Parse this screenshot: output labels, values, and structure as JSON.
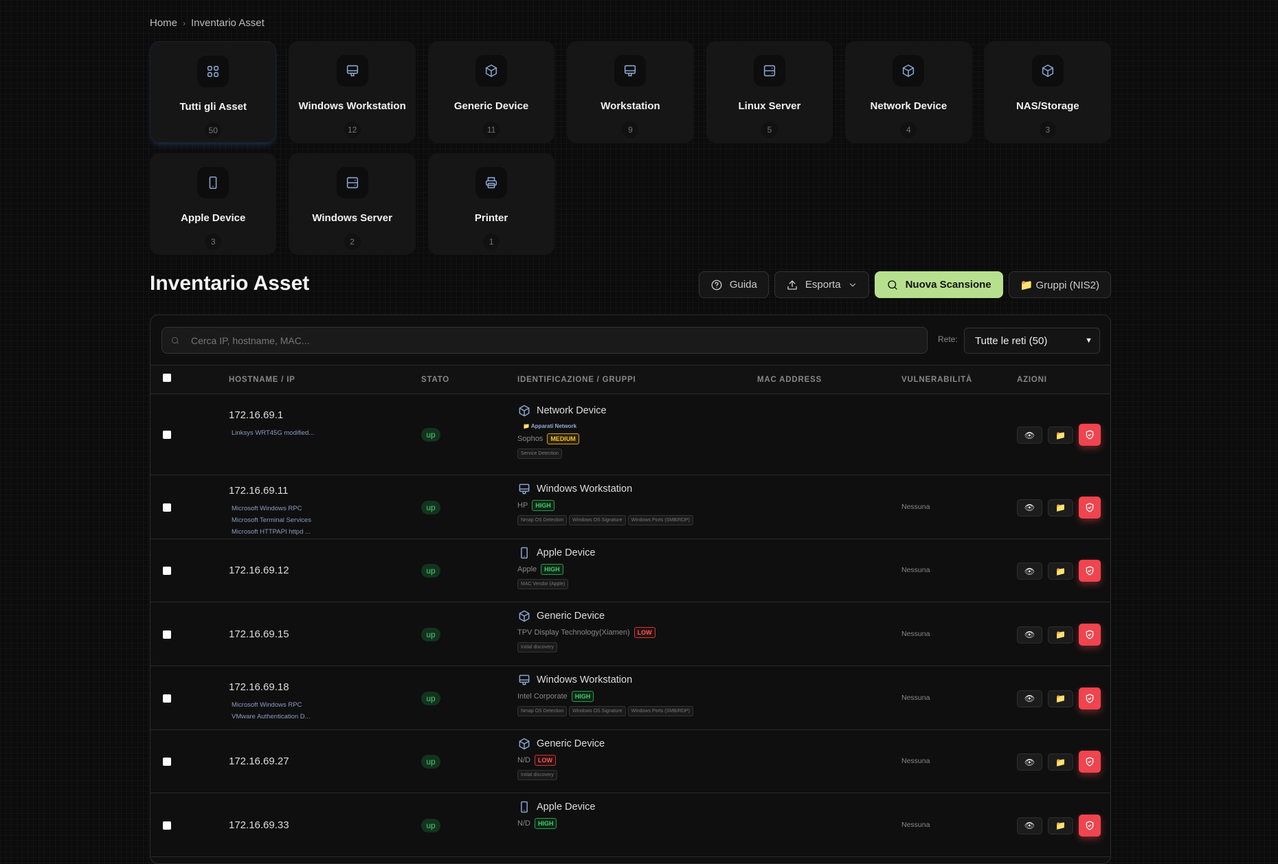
{
  "breadcrumb": {
    "home": "Home",
    "separator": "›",
    "current": "Inventario Asset"
  },
  "categories": [
    {
      "name": "Tutti gli Asset",
      "count": "50",
      "icon": "grid-icon",
      "active": true
    },
    {
      "name": "Windows Workstation",
      "count": "12",
      "icon": "monitor-icon"
    },
    {
      "name": "Generic Device",
      "count": "11",
      "icon": "box-icon"
    },
    {
      "name": "Workstation",
      "count": "9",
      "icon": "monitor-icon"
    },
    {
      "name": "Linux Server",
      "count": "5",
      "icon": "server-icon"
    },
    {
      "name": "Network Device",
      "count": "4",
      "icon": "box-icon"
    },
    {
      "name": "NAS/Storage",
      "count": "3",
      "icon": "box-icon"
    },
    {
      "name": "Apple Device",
      "count": "3",
      "icon": "phone-icon"
    },
    {
      "name": "Windows Server",
      "count": "2",
      "icon": "server-icon"
    },
    {
      "name": "Printer",
      "count": "1",
      "icon": "printer-icon"
    }
  ],
  "page_title": "Inventario Asset",
  "toolbar": {
    "guide": "Guida",
    "export": "Esporta",
    "scan": "Nuova Scansione",
    "groups": "📁 Gruppi (NIS2)",
    "accent": "#b7e08e"
  },
  "filters": {
    "search_placeholder": "Cerca IP, hostname, MAC...",
    "search_value": "",
    "network_label": "Rete:",
    "network_value": "Tutte le reti (50)"
  },
  "table": {
    "columns": [
      "HOSTNAME / IP",
      "STATO",
      "IDENTIFICAZIONE / GRUPPI",
      "MAC ADDRESS",
      "VULNERABILITÀ",
      "AZIONI"
    ],
    "rows": [
      {
        "ip": "172.16.69.1",
        "services": [
          "Linksys WRT45G modified..."
        ],
        "status": "up",
        "type": "Network Device",
        "icon": "box-icon",
        "group": "📁 Apparati Network",
        "vendor": "Sophos",
        "confidence": "MEDIUM",
        "sources": [
          "Service Detection"
        ],
        "mac": "",
        "vuln": ""
      },
      {
        "ip": "172.16.69.11",
        "services": [
          "Microsoft Windows RPC",
          "Microsoft Terminal Services",
          "Microsoft HTTPAPI httpd ..."
        ],
        "status": "up",
        "type": "Windows Workstation",
        "icon": "monitor-icon",
        "vendor": "HP",
        "confidence": "HIGH",
        "sources": [
          "Nmap OS Detection",
          "Windows OS Signature",
          "Windows Ports (SMB/RDP)"
        ],
        "mac": "",
        "vuln": "Nessuna"
      },
      {
        "ip": "172.16.69.12",
        "services": [],
        "status": "up",
        "type": "Apple Device",
        "icon": "phone-icon",
        "vendor": "Apple",
        "confidence": "HIGH",
        "sources": [
          "MAC Vendor (Apple)"
        ],
        "mac": "",
        "vuln": "Nessuna"
      },
      {
        "ip": "172.16.69.15",
        "services": [],
        "status": "up",
        "type": "Generic Device",
        "icon": "box-icon",
        "vendor": "TPV Display Technology(Xiamen)",
        "confidence": "LOW",
        "sources": [
          "Initial discovery"
        ],
        "mac": "",
        "vuln": "Nessuna"
      },
      {
        "ip": "172.16.69.18",
        "services": [
          "Microsoft Windows RPC",
          "VMware Authentication D..."
        ],
        "status": "up",
        "type": "Windows Workstation",
        "icon": "monitor-icon",
        "vendor": "Intel Corporate",
        "confidence": "HIGH",
        "sources": [
          "Nmap OS Detection",
          "Windows OS Signature",
          "Windows Ports (SMB/RDP)"
        ],
        "mac": "",
        "vuln": "Nessuna"
      },
      {
        "ip": "172.16.69.27",
        "services": [],
        "status": "up",
        "type": "Generic Device",
        "icon": "box-icon",
        "vendor": "N/D",
        "confidence": "LOW",
        "sources": [
          "Initial discovery"
        ],
        "mac": "",
        "vuln": "Nessuna"
      },
      {
        "ip": "172.16.69.33",
        "services": [],
        "status": "up",
        "type": "Apple Device",
        "icon": "phone-icon",
        "vendor": "N/D",
        "confidence": "HIGH",
        "sources": [],
        "mac": "",
        "vuln": "Nessuna"
      }
    ],
    "actions": {
      "view": "👁",
      "group": "📁"
    }
  }
}
